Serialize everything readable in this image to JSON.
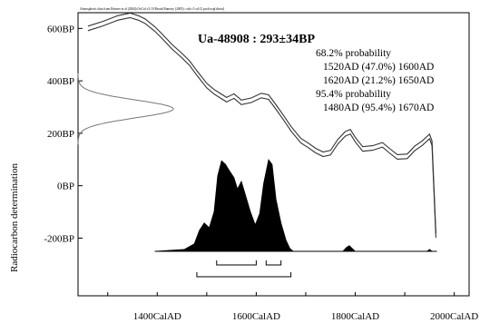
{
  "chart_data": {
    "type": "line",
    "source_note": "Atmospheric data from Reimer et al (2004);OxCal v3.10 Bronk Ramsey (2005); cub r:5 sd:12 prob usp[chron]",
    "title": "Ua-48908 : 293±34BP",
    "ylabel": "Radiocarbon determination",
    "xlabel": "",
    "x_unit": "CalAD",
    "y_unit": "BP",
    "xlim": [
      1240,
      2030
    ],
    "ylim": [
      -420,
      660
    ],
    "x_ticks": [
      1400,
      1600,
      1800,
      2000
    ],
    "x_tick_labels": [
      "1400CalAD",
      "1600CalAD",
      "1800CalAD",
      "2000CalAD"
    ],
    "y_ticks": [
      600,
      400,
      200,
      0,
      -200
    ],
    "y_tick_labels": [
      "600BP",
      "400BP",
      "200BP",
      "0BP",
      "-200BP"
    ],
    "annotations": [
      "68.2% probability",
      "1520AD (47.0%) 1600AD",
      "1620AD (21.2%) 1650AD",
      "95.4% probability",
      "1480AD (95.4%) 1670AD"
    ],
    "calibration_curve": [
      {
        "x": 1260,
        "y": 600
      },
      {
        "x": 1290,
        "y": 618
      },
      {
        "x": 1320,
        "y": 640
      },
      {
        "x": 1345,
        "y": 650
      },
      {
        "x": 1362,
        "y": 640
      },
      {
        "x": 1375,
        "y": 628
      },
      {
        "x": 1395,
        "y": 598
      },
      {
        "x": 1410,
        "y": 570
      },
      {
        "x": 1430,
        "y": 530
      },
      {
        "x": 1450,
        "y": 496
      },
      {
        "x": 1465,
        "y": 468
      },
      {
        "x": 1480,
        "y": 430
      },
      {
        "x": 1500,
        "y": 382
      },
      {
        "x": 1515,
        "y": 358
      },
      {
        "x": 1530,
        "y": 340
      },
      {
        "x": 1540,
        "y": 328
      },
      {
        "x": 1555,
        "y": 342
      },
      {
        "x": 1570,
        "y": 318
      },
      {
        "x": 1590,
        "y": 326
      },
      {
        "x": 1610,
        "y": 344
      },
      {
        "x": 1625,
        "y": 338
      },
      {
        "x": 1640,
        "y": 300
      },
      {
        "x": 1655,
        "y": 260
      },
      {
        "x": 1670,
        "y": 218
      },
      {
        "x": 1690,
        "y": 172
      },
      {
        "x": 1705,
        "y": 154
      },
      {
        "x": 1720,
        "y": 134
      },
      {
        "x": 1735,
        "y": 120
      },
      {
        "x": 1750,
        "y": 126
      },
      {
        "x": 1765,
        "y": 168
      },
      {
        "x": 1780,
        "y": 198
      },
      {
        "x": 1790,
        "y": 206
      },
      {
        "x": 1800,
        "y": 176
      },
      {
        "x": 1815,
        "y": 140
      },
      {
        "x": 1835,
        "y": 144
      },
      {
        "x": 1855,
        "y": 156
      },
      {
        "x": 1870,
        "y": 132
      },
      {
        "x": 1885,
        "y": 110
      },
      {
        "x": 1905,
        "y": 112
      },
      {
        "x": 1920,
        "y": 142
      },
      {
        "x": 1935,
        "y": 162
      },
      {
        "x": 1950,
        "y": 188
      },
      {
        "x": 1955,
        "y": 162
      },
      {
        "x": 1963,
        "y": -190
      }
    ],
    "measurement_distribution": {
      "mean": 293,
      "sd": 34
    },
    "probability_distribution": [
      {
        "x": 1395,
        "p": 0.0
      },
      {
        "x": 1455,
        "p": 0.02
      },
      {
        "x": 1475,
        "p": 0.08
      },
      {
        "x": 1485,
        "p": 0.22
      },
      {
        "x": 1495,
        "p": 0.3
      },
      {
        "x": 1505,
        "p": 0.25
      },
      {
        "x": 1515,
        "p": 0.42
      },
      {
        "x": 1522,
        "p": 0.8
      },
      {
        "x": 1530,
        "p": 0.96
      },
      {
        "x": 1538,
        "p": 0.92
      },
      {
        "x": 1545,
        "p": 0.86
      },
      {
        "x": 1555,
        "p": 0.78
      },
      {
        "x": 1562,
        "p": 0.66
      },
      {
        "x": 1570,
        "p": 0.74
      },
      {
        "x": 1578,
        "p": 0.6
      },
      {
        "x": 1588,
        "p": 0.42
      },
      {
        "x": 1598,
        "p": 0.28
      },
      {
        "x": 1607,
        "p": 0.4
      },
      {
        "x": 1615,
        "p": 0.72
      },
      {
        "x": 1625,
        "p": 0.97
      },
      {
        "x": 1632,
        "p": 0.92
      },
      {
        "x": 1640,
        "p": 0.55
      },
      {
        "x": 1650,
        "p": 0.3
      },
      {
        "x": 1660,
        "p": 0.12
      },
      {
        "x": 1668,
        "p": 0.03
      },
      {
        "x": 1675,
        "p": 0.0
      },
      {
        "x": 1775,
        "p": 0.0
      },
      {
        "x": 1782,
        "p": 0.04
      },
      {
        "x": 1788,
        "p": 0.06
      },
      {
        "x": 1794,
        "p": 0.03
      },
      {
        "x": 1800,
        "p": 0.0
      },
      {
        "x": 1945,
        "p": 0.0
      },
      {
        "x": 1950,
        "p": 0.02
      },
      {
        "x": 1955,
        "p": 0.0
      }
    ],
    "ranges_68": [
      [
        1520,
        1600
      ],
      [
        1620,
        1650
      ]
    ],
    "ranges_95": [
      [
        1480,
        1670
      ]
    ],
    "grid": false,
    "legend": "none"
  }
}
